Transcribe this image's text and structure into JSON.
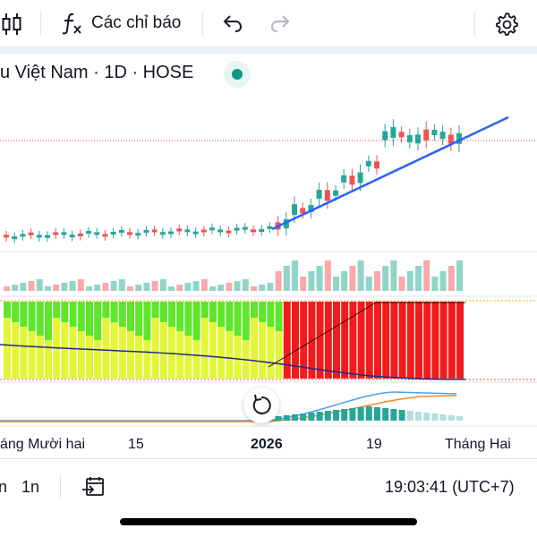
{
  "toolbar": {
    "indicators_label": "Các chỉ báo",
    "icons": [
      "candlestick-icon",
      "function-icon",
      "undo-icon",
      "redo-icon",
      "settings-icon"
    ]
  },
  "chart_header": {
    "title": "u Việt Nam · 1D · HOSE",
    "status_color": "#089981"
  },
  "time_axis": {
    "labels": [
      "áng Mười hai",
      "15",
      "2026",
      "19",
      "Tháng Hai"
    ]
  },
  "bottom_bar": {
    "range_1": "n",
    "range_2": "1n",
    "clock": "19:03:41 (UTC+7)",
    "icons": [
      "date-range-icon"
    ]
  },
  "colors": {
    "up": "#26a69a",
    "down": "#ef5350",
    "trendline": "#2962ff",
    "volume_up": "#91d5c8",
    "volume_down": "#f7a9ab",
    "osc_green": "#5ee62a",
    "osc_yellow": "#e4f53a",
    "osc_red": "#f21b1b"
  }
}
